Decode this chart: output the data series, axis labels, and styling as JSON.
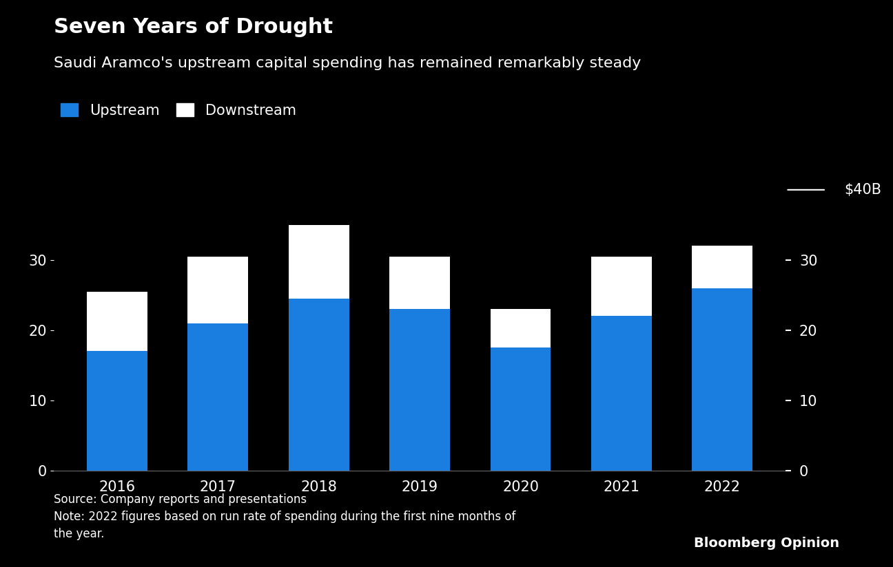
{
  "title": "Seven Years of Drought",
  "subtitle": "Saudi Aramco's upstream capital spending has remained remarkably steady",
  "years": [
    "2016",
    "2017",
    "2018",
    "2019",
    "2020",
    "2021",
    "2022"
  ],
  "upstream": [
    17.0,
    21.0,
    24.5,
    23.0,
    17.5,
    22.0,
    26.0
  ],
  "downstream": [
    8.5,
    9.5,
    10.5,
    7.5,
    5.5,
    8.5,
    6.0
  ],
  "upstream_color": "#1a7de0",
  "downstream_color": "#ffffff",
  "background_color": "#000000",
  "text_color": "#ffffff",
  "ylabel_top": "$40B",
  "yticks": [
    0,
    10,
    20,
    30
  ],
  "ylim": [
    0,
    42
  ],
  "source_text": "Source: Company reports and presentations\nNote: 2022 figures based on run rate of spending during the first nine months of\nthe year.",
  "bloomberg_text": "Bloomberg Opinion",
  "legend_upstream": "Upstream",
  "legend_downstream": "Downstream",
  "title_fontsize": 22,
  "subtitle_fontsize": 16,
  "tick_fontsize": 15,
  "legend_fontsize": 15,
  "source_fontsize": 12,
  "bloomberg_fontsize": 14
}
